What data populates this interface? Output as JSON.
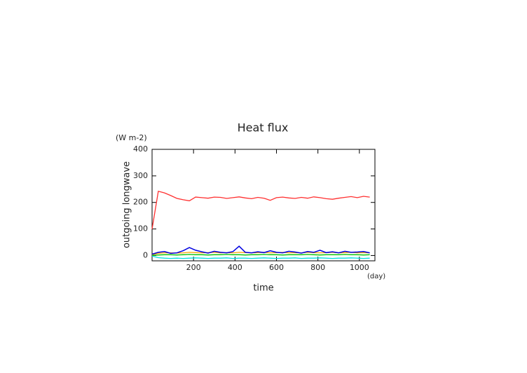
{
  "chart_data": {
    "type": "line",
    "title": "Heat flux",
    "y_unit": "(W m-2)",
    "y_label": "outgoing longwave",
    "x_label": "time",
    "x_unit": "(day)",
    "x": [
      0,
      30,
      60,
      90,
      120,
      150,
      180,
      210,
      240,
      270,
      300,
      330,
      360,
      390,
      420,
      450,
      480,
      510,
      540,
      570,
      600,
      630,
      660,
      690,
      720,
      750,
      780,
      810,
      840,
      870,
      900,
      930,
      960,
      990,
      1020,
      1050
    ],
    "series": [
      {
        "color": "#ff3030",
        "values": [
          100,
          242,
          236,
          226,
          215,
          210,
          206,
          220,
          218,
          216,
          220,
          219,
          215,
          218,
          221,
          217,
          214,
          219,
          216,
          208,
          218,
          220,
          217,
          215,
          219,
          216,
          221,
          218,
          214,
          212,
          216,
          219,
          222,
          218,
          223,
          220
        ]
      },
      {
        "color": "#ffa500",
        "values": [
          3,
          8,
          10,
          10,
          9,
          10,
          12,
          11,
          10,
          11,
          12,
          10,
          11,
          10,
          12,
          11,
          10,
          11,
          12,
          10,
          11,
          12,
          10,
          11,
          10,
          12,
          11,
          10,
          11,
          12,
          10,
          11,
          12,
          10,
          11,
          10
        ]
      },
      {
        "color": "#00c000",
        "values": [
          0,
          2,
          3,
          3,
          2,
          3,
          4,
          3,
          3,
          2,
          3,
          3,
          4,
          3,
          3,
          2,
          3,
          3,
          4,
          3,
          3,
          2,
          3,
          3,
          3,
          4,
          3,
          2,
          3,
          3,
          3,
          4,
          3,
          3,
          2,
          3
        ]
      },
      {
        "color": "#00e0e0",
        "values": [
          -2,
          -8,
          -10,
          -11,
          -10,
          -11,
          -10,
          -9,
          -10,
          -11,
          -10,
          -10,
          -9,
          -11,
          -10,
          -10,
          -11,
          -10,
          -9,
          -10,
          -11,
          -10,
          -10,
          -9,
          -11,
          -10,
          -10,
          -9,
          -10,
          -11,
          -10,
          -10,
          -9,
          -10,
          -11,
          -10
        ]
      },
      {
        "color": "#0000e0",
        "values": [
          5,
          12,
          15,
          8,
          10,
          18,
          30,
          20,
          14,
          9,
          16,
          12,
          10,
          15,
          35,
          12,
          10,
          14,
          11,
          18,
          12,
          10,
          16,
          13,
          9,
          15,
          12,
          20,
          11,
          14,
          10,
          16,
          12,
          13,
          15,
          10
        ]
      }
    ],
    "xlim": [
      0,
      1075
    ],
    "ylim": [
      -20,
      400
    ],
    "xticks": [
      200,
      400,
      600,
      800,
      1000
    ],
    "yticks": [
      0,
      100,
      200,
      300,
      400
    ]
  }
}
